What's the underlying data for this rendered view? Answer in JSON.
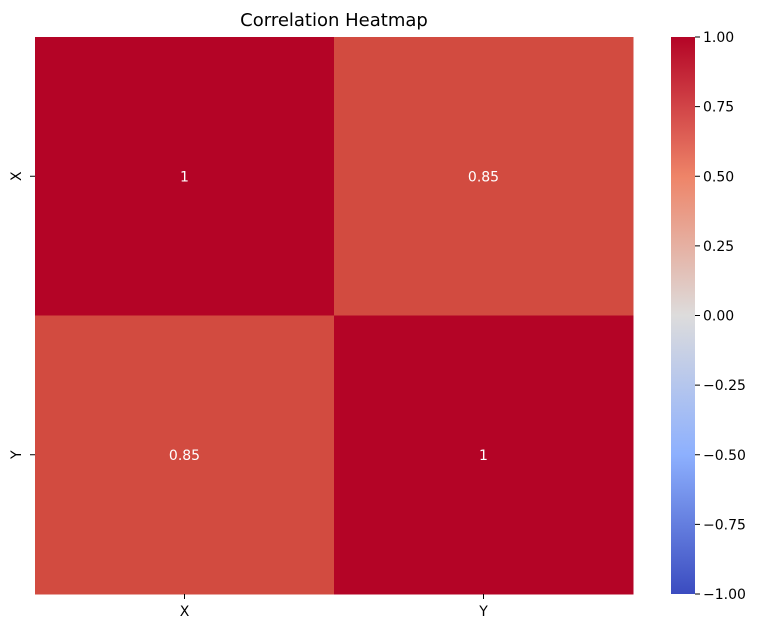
{
  "chart_data": {
    "type": "heatmap",
    "title": "Correlation Heatmap",
    "x_categories": [
      "X",
      "Y"
    ],
    "y_categories": [
      "X",
      "Y"
    ],
    "values": [
      [
        1,
        0.85
      ],
      [
        0.85,
        1
      ]
    ],
    "cell_labels": [
      [
        "1",
        "0.85"
      ],
      [
        "0.85",
        "1"
      ]
    ],
    "colormap": "coolwarm",
    "color_range": [
      -1.0,
      1.0
    ],
    "colorbar_ticks": [
      1.0,
      0.75,
      0.5,
      0.25,
      0.0,
      -0.25,
      -0.5,
      -0.75,
      -1.0
    ],
    "colorbar_tick_labels": [
      "1.00",
      "0.75",
      "0.50",
      "0.25",
      "0.00",
      "−0.25",
      "−0.50",
      "−0.75",
      "−1.00"
    ],
    "colorbar_colors": {
      "max": "#b40426",
      "upper": "#ee8468",
      "mid": "#dddcdc",
      "lower": "#8db0fe",
      "min": "#3b4cc0"
    },
    "cell_colors": [
      [
        "#b40426",
        "#d24b40"
      ],
      [
        "#d24b40",
        "#b40426"
      ]
    ],
    "cell_text_color": "#ffffff",
    "legend": "right"
  }
}
